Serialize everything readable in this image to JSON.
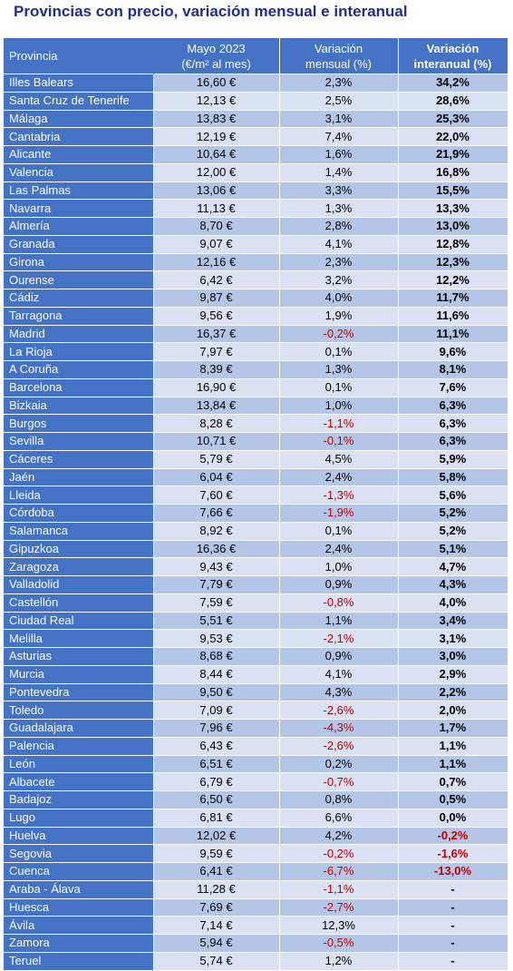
{
  "title": "Provincias con precio, variación mensual e interanual",
  "headers": {
    "provincia": "Provincia",
    "precio_line1": "Mayo 2023",
    "precio_line2": "(€/m² al mes)",
    "mensual_line1": "Variación",
    "mensual_line2": "mensual (%)",
    "interanual_line1": "Variación",
    "interanual_line2": "interanual (%)"
  },
  "colors": {
    "title": "#1f2f8c",
    "header_bg": "#4472c4",
    "row_dark": "#b4c6e7",
    "row_light": "#d9e1f2",
    "negative": "#c00000"
  },
  "rows": [
    {
      "provincia": "Illes Balears",
      "precio": "16,60 €",
      "mensual": "2,3%",
      "interanual": "34,2%"
    },
    {
      "provincia": "Santa Cruz de Tenerife",
      "precio": "12,13 €",
      "mensual": "2,5%",
      "interanual": "28,6%"
    },
    {
      "provincia": "Málaga",
      "precio": "13,83 €",
      "mensual": "3,1%",
      "interanual": "25,3%"
    },
    {
      "provincia": "Cantabria",
      "precio": "12,19 €",
      "mensual": "7,4%",
      "interanual": "22,0%"
    },
    {
      "provincia": "Alicante",
      "precio": "10,64 €",
      "mensual": "1,6%",
      "interanual": "21,9%"
    },
    {
      "provincia": "Valencia",
      "precio": "12,00 €",
      "mensual": "1,4%",
      "interanual": "16,8%"
    },
    {
      "provincia": "Las Palmas",
      "precio": "13,06 €",
      "mensual": "3,3%",
      "interanual": "15,5%"
    },
    {
      "provincia": "Navarra",
      "precio": "11,13 €",
      "mensual": "1,3%",
      "interanual": "13,3%"
    },
    {
      "provincia": "Almería",
      "precio": "8,70 €",
      "mensual": "2,8%",
      "interanual": "13,0%"
    },
    {
      "provincia": "Granada",
      "precio": "9,07 €",
      "mensual": "4,1%",
      "interanual": "12,8%"
    },
    {
      "provincia": "Girona",
      "precio": "12,16 €",
      "mensual": "2,3%",
      "interanual": "12,3%"
    },
    {
      "provincia": "Ourense",
      "precio": "6,42 €",
      "mensual": "3,2%",
      "interanual": "12,2%"
    },
    {
      "provincia": "Cádiz",
      "precio": "9,87 €",
      "mensual": "4,0%",
      "interanual": "11,7%"
    },
    {
      "provincia": "Tarragona",
      "precio": "9,56 €",
      "mensual": "1,9%",
      "interanual": "11,6%"
    },
    {
      "provincia": "Madrid",
      "precio": "16,37 €",
      "mensual": "-0,2%",
      "interanual": "11,1%"
    },
    {
      "provincia": "La Rioja",
      "precio": "7,97 €",
      "mensual": "0,1%",
      "interanual": "9,6%"
    },
    {
      "provincia": "A Coruña",
      "precio": "8,39 €",
      "mensual": "1,3%",
      "interanual": "8,1%"
    },
    {
      "provincia": "Barcelona",
      "precio": "16,90 €",
      "mensual": "0,1%",
      "interanual": "7,6%"
    },
    {
      "provincia": "Bizkaia",
      "precio": "13,84 €",
      "mensual": "1,0%",
      "interanual": "6,3%"
    },
    {
      "provincia": "Burgos",
      "precio": "8,28 €",
      "mensual": "-1,1%",
      "interanual": "6,3%"
    },
    {
      "provincia": "Sevilla",
      "precio": "10,71 €",
      "mensual": "-0,1%",
      "interanual": "6,3%"
    },
    {
      "provincia": "Cáceres",
      "precio": "5,79 €",
      "mensual": "4,5%",
      "interanual": "5,9%"
    },
    {
      "provincia": "Jaén",
      "precio": "6,04 €",
      "mensual": "2,4%",
      "interanual": "5,8%"
    },
    {
      "provincia": "Lleida",
      "precio": "7,60 €",
      "mensual": "-1,3%",
      "interanual": "5,6%"
    },
    {
      "provincia": "Córdoba",
      "precio": "7,66 €",
      "mensual": "-1,9%",
      "interanual": "5,2%"
    },
    {
      "provincia": "Salamanca",
      "precio": "8,92 €",
      "mensual": "0,1%",
      "interanual": "5,2%"
    },
    {
      "provincia": "Gipuzkoa",
      "precio": "16,36 €",
      "mensual": "2,4%",
      "interanual": "5,1%"
    },
    {
      "provincia": "Zaragoza",
      "precio": "9,43 €",
      "mensual": "1,0%",
      "interanual": "4,7%"
    },
    {
      "provincia": "Valladolid",
      "precio": "7,79 €",
      "mensual": "0,9%",
      "interanual": "4,3%"
    },
    {
      "provincia": "Castellón",
      "precio": "7,59 €",
      "mensual": "-0,8%",
      "interanual": "4,0%"
    },
    {
      "provincia": "Ciudad Real",
      "precio": "5,51 €",
      "mensual": "1,1%",
      "interanual": "3,4%"
    },
    {
      "provincia": "Melilla",
      "precio": "9,53 €",
      "mensual": "-2,1%",
      "interanual": "3,1%"
    },
    {
      "provincia": "Asturias",
      "precio": "8,68 €",
      "mensual": "0,9%",
      "interanual": "3,0%"
    },
    {
      "provincia": "Murcia",
      "precio": "8,44 €",
      "mensual": "4,1%",
      "interanual": "2,9%"
    },
    {
      "provincia": "Pontevedra",
      "precio": "9,50 €",
      "mensual": "4,3%",
      "interanual": "2,2%"
    },
    {
      "provincia": "Toledo",
      "precio": "7,09 €",
      "mensual": "-2,6%",
      "interanual": "2,0%"
    },
    {
      "provincia": "Guadalajara",
      "precio": "7,96 €",
      "mensual": "-4,3%",
      "interanual": "1,7%"
    },
    {
      "provincia": "Palencia",
      "precio": "6,43 €",
      "mensual": "-2,6%",
      "interanual": "1,1%"
    },
    {
      "provincia": "León",
      "precio": "6,51 €",
      "mensual": "0,2%",
      "interanual": "1,1%"
    },
    {
      "provincia": "Albacete",
      "precio": "6,79 €",
      "mensual": "-0,7%",
      "interanual": "0,7%"
    },
    {
      "provincia": "Badajoz",
      "precio": "6,50 €",
      "mensual": "0,8%",
      "interanual": "0,5%"
    },
    {
      "provincia": "Lugo",
      "precio": "6,81 €",
      "mensual": "6,6%",
      "interanual": "0,0%"
    },
    {
      "provincia": "Huelva",
      "precio": "12,02 €",
      "mensual": "4,2%",
      "interanual": "-0,2%"
    },
    {
      "provincia": "Segovia",
      "precio": "9,59 €",
      "mensual": "-0,2%",
      "interanual": "-1,6%"
    },
    {
      "provincia": "Cuenca",
      "precio": "6,41 €",
      "mensual": "-6,7%",
      "interanual": "-13,0%"
    },
    {
      "provincia": "Araba - Álava",
      "precio": "11,28 €",
      "mensual": "-1,1%",
      "interanual": "-"
    },
    {
      "provincia": "Huesca",
      "precio": "7,69 €",
      "mensual": "-2,7%",
      "interanual": "-"
    },
    {
      "provincia": "Ávila",
      "precio": "7,14 €",
      "mensual": "12,3%",
      "interanual": "-"
    },
    {
      "provincia": "Zamora",
      "precio": "5,94 €",
      "mensual": "-0,5%",
      "interanual": "-"
    },
    {
      "provincia": "Teruel",
      "precio": "5,74 €",
      "mensual": "1,2%",
      "interanual": "-"
    }
  ]
}
